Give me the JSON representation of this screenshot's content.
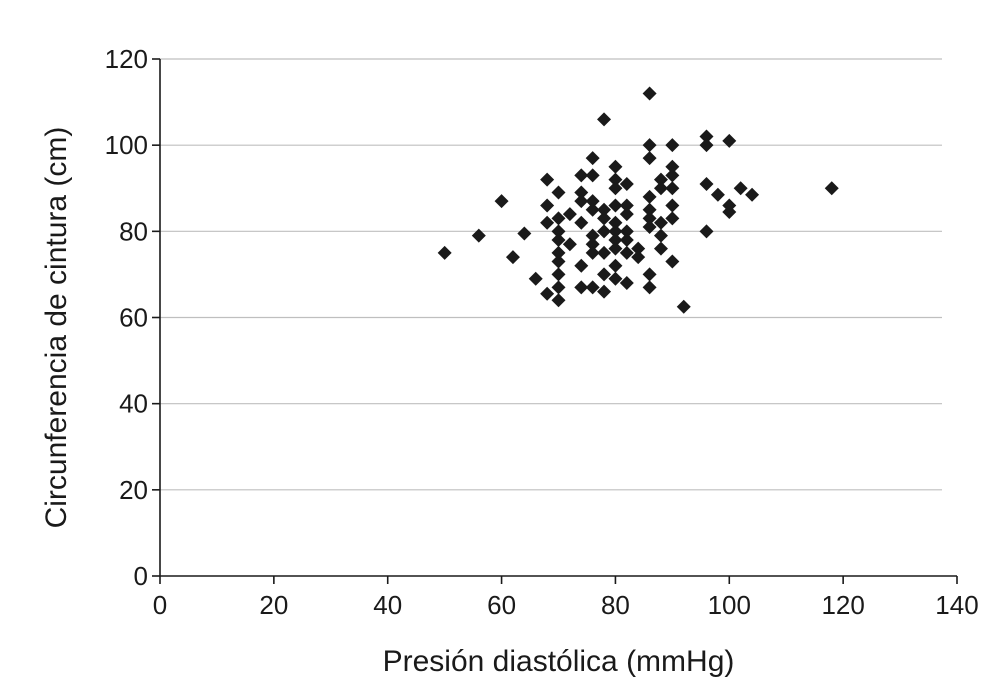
{
  "chart_data": {
    "type": "scatter",
    "title": "",
    "xlabel": "Presión diastólica (mmHg)",
    "ylabel": "Circunferencia de cintura (cm)",
    "xlim": [
      0,
      140
    ],
    "ylim": [
      0,
      120
    ],
    "xticks": [
      "0",
      "20",
      "40",
      "60",
      "80",
      "100",
      "120",
      "140"
    ],
    "yticks": [
      "0",
      "20",
      "40",
      "60",
      "80",
      "100",
      "120"
    ],
    "grid": "horizontal",
    "legend": "none",
    "marker": "diamond",
    "marker_color": "#1a1a1a",
    "points": [
      [
        50,
        75
      ],
      [
        56,
        79
      ],
      [
        60,
        87
      ],
      [
        62,
        74
      ],
      [
        64,
        79.5
      ],
      [
        66,
        69
      ],
      [
        68,
        92
      ],
      [
        68,
        86
      ],
      [
        68,
        82
      ],
      [
        68,
        65.5
      ],
      [
        70,
        89
      ],
      [
        70,
        83
      ],
      [
        70,
        80
      ],
      [
        70,
        78
      ],
      [
        70,
        75
      ],
      [
        70,
        73
      ],
      [
        70,
        70
      ],
      [
        70,
        67
      ],
      [
        70,
        64
      ],
      [
        72,
        84
      ],
      [
        72,
        77
      ],
      [
        74,
        93
      ],
      [
        74,
        89
      ],
      [
        74,
        87
      ],
      [
        74,
        82
      ],
      [
        74,
        72
      ],
      [
        74,
        67
      ],
      [
        76,
        97
      ],
      [
        76,
        93
      ],
      [
        76,
        87
      ],
      [
        76,
        85
      ],
      [
        76,
        79
      ],
      [
        76,
        77
      ],
      [
        76,
        75
      ],
      [
        76,
        67
      ],
      [
        78,
        106
      ],
      [
        78,
        85
      ],
      [
        78,
        83
      ],
      [
        78,
        80
      ],
      [
        78,
        75
      ],
      [
        78,
        70
      ],
      [
        78,
        66
      ],
      [
        80,
        95
      ],
      [
        80,
        92
      ],
      [
        80,
        90
      ],
      [
        80,
        86
      ],
      [
        80,
        82
      ],
      [
        80,
        80
      ],
      [
        80,
        78
      ],
      [
        80,
        76
      ],
      [
        80,
        72
      ],
      [
        80,
        69
      ],
      [
        82,
        91
      ],
      [
        82,
        86
      ],
      [
        82,
        84
      ],
      [
        82,
        80
      ],
      [
        82,
        78
      ],
      [
        82,
        75
      ],
      [
        82,
        68
      ],
      [
        84,
        76
      ],
      [
        84,
        74
      ],
      [
        86,
        112
      ],
      [
        86,
        100
      ],
      [
        86,
        97
      ],
      [
        86,
        88
      ],
      [
        86,
        85
      ],
      [
        86,
        83
      ],
      [
        86,
        81
      ],
      [
        86,
        70
      ],
      [
        86,
        67
      ],
      [
        88,
        92
      ],
      [
        88,
        90
      ],
      [
        88,
        82
      ],
      [
        88,
        79
      ],
      [
        88,
        76
      ],
      [
        90,
        100
      ],
      [
        90,
        95
      ],
      [
        90,
        93
      ],
      [
        90,
        90
      ],
      [
        90,
        86
      ],
      [
        90,
        83
      ],
      [
        90,
        73
      ],
      [
        92,
        62.5
      ],
      [
        96,
        102
      ],
      [
        96,
        100
      ],
      [
        96,
        91
      ],
      [
        96,
        80
      ],
      [
        98,
        88.5
      ],
      [
        100,
        101
      ],
      [
        100,
        86
      ],
      [
        100,
        84.5
      ],
      [
        102,
        90
      ],
      [
        104,
        88.5
      ],
      [
        118,
        90
      ]
    ]
  }
}
